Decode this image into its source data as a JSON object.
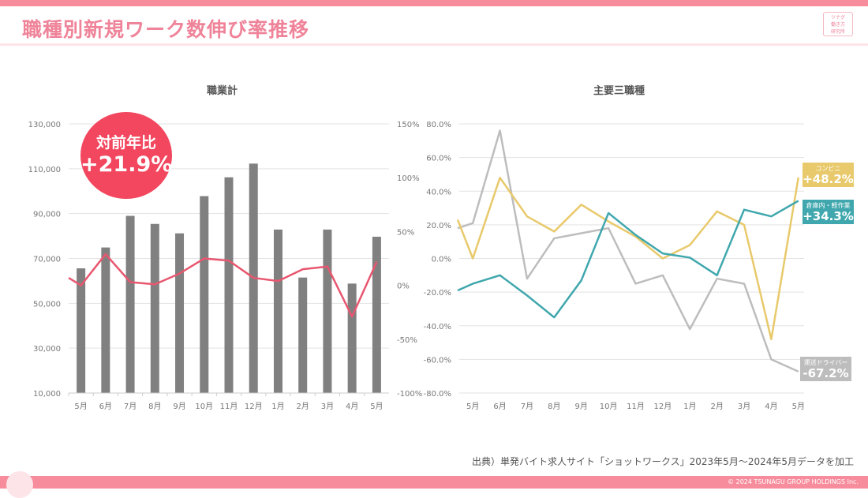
{
  "header": {
    "title": "職種別新規ワーク数伸び率推移",
    "logo_lines": [
      "ツナグ",
      "働き方",
      "研究所"
    ]
  },
  "badge": {
    "label": "対前年比",
    "value": "+21.9%"
  },
  "tags": [
    {
      "name": "コンビニ",
      "value": "+48.2%",
      "color": "#e8c96b"
    },
    {
      "name": "倉庫内・軽作業",
      "value": "+34.3%",
      "color": "#3fa7ad"
    },
    {
      "name": "運送ドライバー",
      "value": "-67.2%",
      "color": "#bdbdbd"
    }
  ],
  "source": "出典）単発バイト求人サイト「ショットワークス」2023年5月～2024年5月データを加工",
  "copyright": "© 2024 TSUNAGU GROUP HOLDINGS Inc.",
  "chart_data": [
    {
      "type": "bar+line",
      "title": "職業計",
      "categories": [
        "5月",
        "6月",
        "7月",
        "8月",
        "9月",
        "10月",
        "11月",
        "12月",
        "1月",
        "2月",
        "3月",
        "4月",
        "5月"
      ],
      "bar_values": [
        65600,
        74900,
        89000,
        85400,
        81200,
        97800,
        106200,
        112300,
        82900,
        61500,
        82900,
        58800,
        79700
      ],
      "bar_color": "#808080",
      "line_lead_in": 7,
      "line_values": [
        0,
        29,
        3,
        1,
        11,
        25,
        23,
        7,
        4,
        15,
        17.5,
        -29,
        21.9
      ],
      "line_color": "#e8576f",
      "ylim_left": [
        10000,
        130000
      ],
      "yticks_left": [
        "10,000",
        "30,000",
        "50,000",
        "70,000",
        "90,000",
        "110,000",
        "130,000"
      ],
      "ylim_right": [
        -100,
        150
      ],
      "yticks_right": [
        "-100%",
        "-50%",
        "0%",
        "50%",
        "100%",
        "150%"
      ],
      "grid": true
    },
    {
      "type": "line",
      "title": "主要三職種",
      "categories": [
        "5月",
        "6月",
        "7月",
        "8月",
        "9月",
        "10月",
        "11月",
        "12月",
        "1月",
        "2月",
        "3月",
        "4月",
        "5月"
      ],
      "series": [
        {
          "name": "運送ドライバー",
          "color": "#bdbdbd",
          "lead_in": 18,
          "values": [
            21,
            76,
            -12,
            12,
            15,
            18,
            -15,
            -10,
            -42,
            -12,
            -15,
            -60,
            -67.2
          ]
        },
        {
          "name": "コンビニ",
          "color": "#e8c96b",
          "lead_in": 23,
          "values": [
            0,
            48,
            25,
            16,
            32,
            22,
            13,
            0,
            8,
            28,
            20,
            -48,
            48.2
          ]
        },
        {
          "name": "倉庫内・軽作業",
          "color": "#3fa7ad",
          "lead_in": -19,
          "values": [
            -15,
            -10,
            -22,
            -35,
            -13,
            27,
            14,
            3,
            0.5,
            -10,
            29,
            25,
            34.3
          ]
        }
      ],
      "ylim": [
        -80,
        80
      ],
      "yticks": [
        "-80.0%",
        "-60.0%",
        "-40.0%",
        "-20.0%",
        "0.0%",
        "20.0%",
        "40.0%",
        "60.0%",
        "80.0%"
      ],
      "grid": true
    }
  ]
}
